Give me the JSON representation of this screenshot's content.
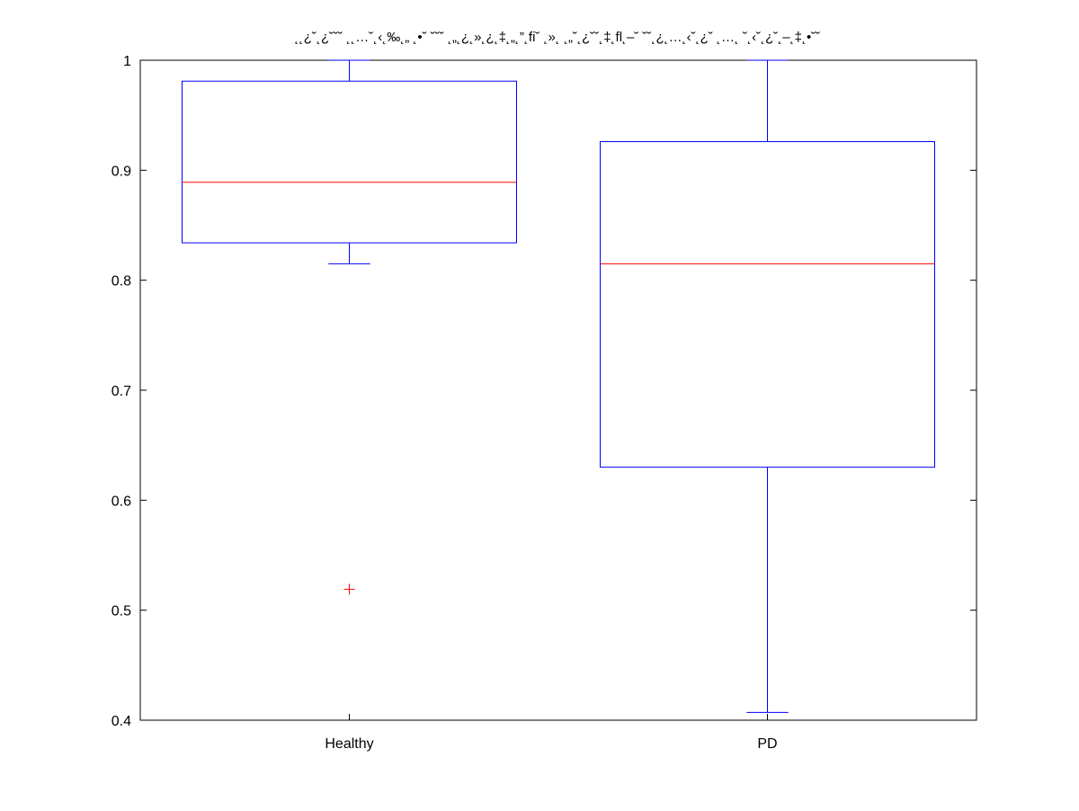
{
  "chart_data": {
    "type": "box",
    "title": "˛˛¿˘˛¿˘˘˘ ˛˛…˘˛‹˛‰˛„ ˛•˘ ˘˘˘ ˛„˛¿˛»˛¿˛‡˛„˛”˛fi˘ ˛»˛ ˛„˘˛¿˘˘˛‡˛fl˛–˘ ˘˘˛¿˛…˛‹˘˛¿˘ ˛…˛ ˘˛‹˘˛¿˘˛–˛‡˛•˘˘",
    "xlabel": "",
    "ylabel": "",
    "ylim": [
      0.4,
      1.0
    ],
    "yticks": [
      "0.4",
      "0.5",
      "0.6",
      "0.7",
      "0.8",
      "0.9",
      "1"
    ],
    "categories": [
      "Healthy",
      "PD"
    ],
    "boxes": [
      {
        "label": "Healthy",
        "whisker_low": 0.815,
        "q1": 0.834,
        "median": 0.889,
        "q3": 0.981,
        "whisker_high": 1.0,
        "outliers": [
          0.519
        ]
      },
      {
        "label": "PD",
        "whisker_low": 0.407,
        "q1": 0.63,
        "median": 0.815,
        "q3": 0.926,
        "whisker_high": 1.0,
        "outliers": []
      }
    ],
    "colors": {
      "box": "#0000ff",
      "median": "#ff0000",
      "outlier": "#ff0000",
      "axes": "#000000"
    },
    "grid": false,
    "legend": "none"
  }
}
